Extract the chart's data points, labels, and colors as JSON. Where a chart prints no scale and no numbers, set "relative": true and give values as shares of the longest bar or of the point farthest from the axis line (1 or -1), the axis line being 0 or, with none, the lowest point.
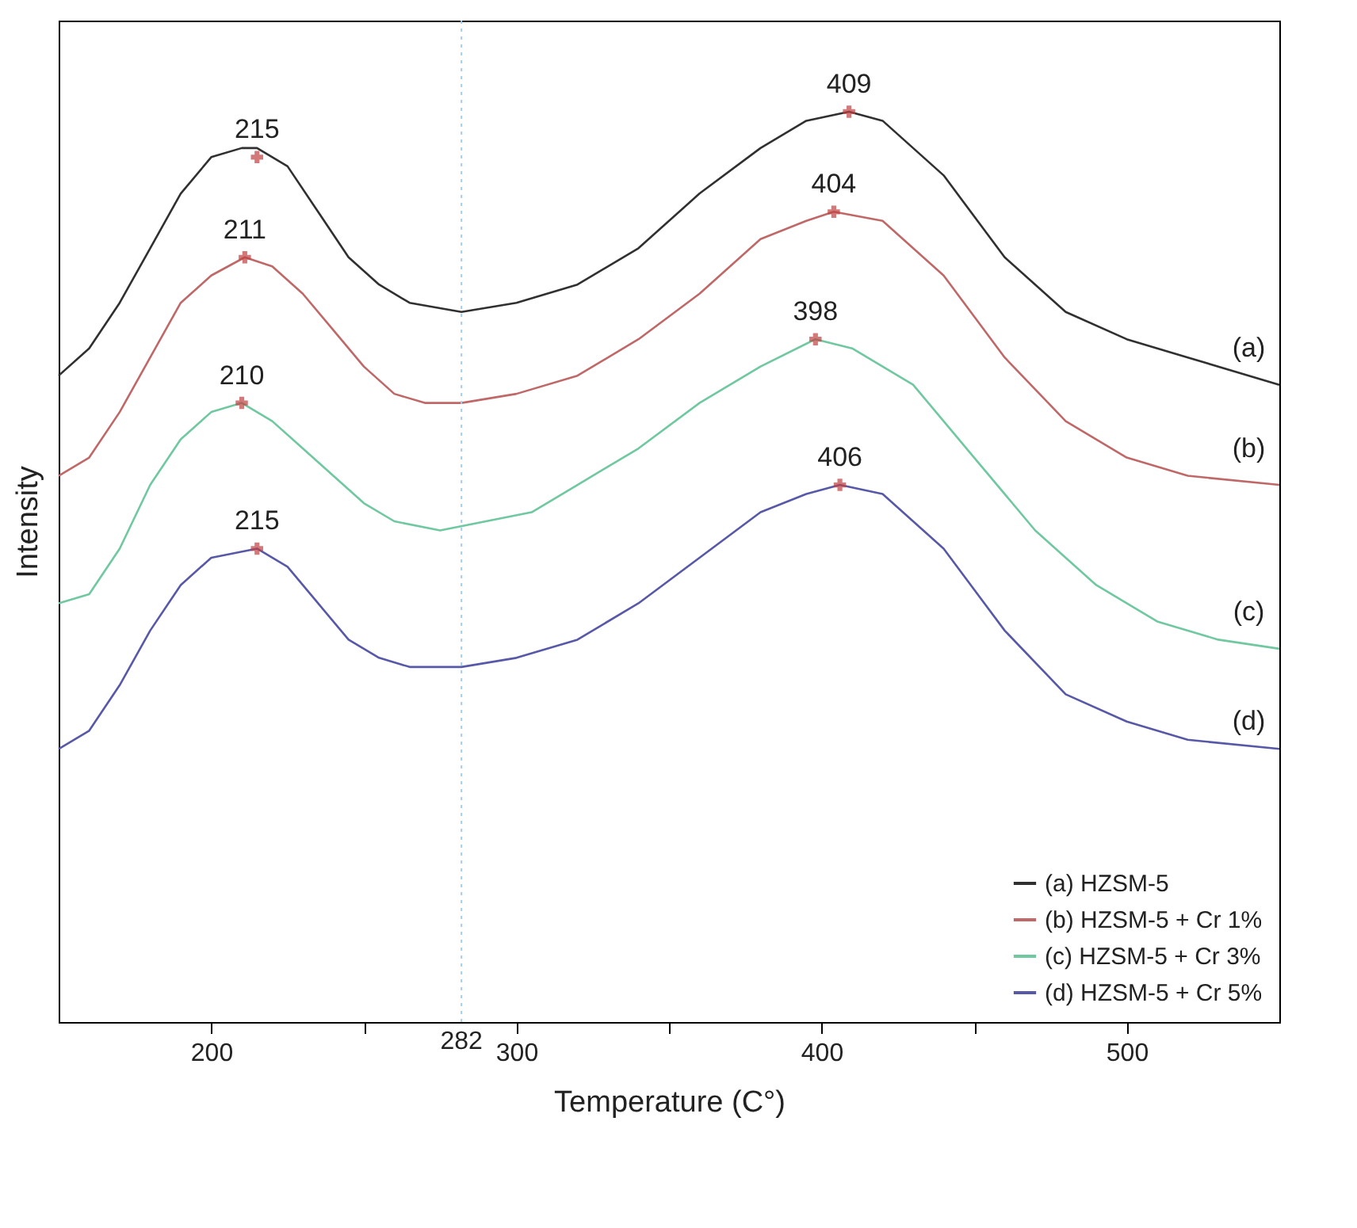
{
  "chart_data": {
    "type": "line",
    "relative": true,
    "xlabel": "Temperature (C°)",
    "ylabel": "Intensity",
    "xlim": [
      150,
      550
    ],
    "xticks": [
      200,
      {
        "value": 250,
        "label": null
      },
      300,
      {
        "value": 350,
        "label": null
      },
      400,
      {
        "value": 450,
        "label": null
      },
      500
    ],
    "legend": "bottom right",
    "grid": false,
    "series": [
      {
        "name": "(a) HZSM-5",
        "color": "#303030",
        "x": [
          150,
          160,
          170,
          180,
          190,
          200,
          210,
          215,
          225,
          235,
          245,
          255,
          265,
          282,
          300,
          320,
          340,
          360,
          380,
          395,
          409,
          420,
          440,
          460,
          480,
          500,
          520,
          550
        ],
        "values": [
          0.71,
          0.74,
          0.79,
          0.85,
          0.91,
          0.95,
          0.96,
          0.96,
          0.94,
          0.89,
          0.84,
          0.81,
          0.79,
          0.78,
          0.79,
          0.81,
          0.85,
          0.91,
          0.96,
          0.99,
          1,
          0.99,
          0.93,
          0.84,
          0.78,
          0.75,
          0.73,
          0.7
        ]
      },
      {
        "name": "(b) HZSM-5 + Cr 1%",
        "color": "#c06868",
        "x": [
          150,
          160,
          170,
          180,
          190,
          200,
          211,
          220,
          230,
          240,
          250,
          260,
          270,
          282,
          300,
          320,
          340,
          360,
          380,
          395,
          404,
          420,
          440,
          460,
          480,
          500,
          520,
          550
        ],
        "values": [
          0.6,
          0.62,
          0.67,
          0.73,
          0.79,
          0.82,
          0.84,
          0.83,
          0.8,
          0.76,
          0.72,
          0.69,
          0.68,
          0.68,
          0.69,
          0.71,
          0.75,
          0.8,
          0.86,
          0.88,
          0.89,
          0.88,
          0.82,
          0.73,
          0.66,
          0.62,
          0.6,
          0.59
        ]
      },
      {
        "name": "(c) HZSM-5 + Cr 3%",
        "color": "#70c8a0",
        "x": [
          150,
          160,
          170,
          180,
          190,
          200,
          210,
          220,
          230,
          240,
          250,
          260,
          275,
          290,
          305,
          320,
          340,
          360,
          380,
          398,
          410,
          430,
          450,
          470,
          490,
          510,
          530,
          550
        ],
        "values": [
          0.46,
          0.47,
          0.52,
          0.59,
          0.64,
          0.67,
          0.68,
          0.66,
          0.63,
          0.6,
          0.57,
          0.55,
          0.54,
          0.55,
          0.56,
          0.59,
          0.63,
          0.68,
          0.72,
          0.75,
          0.74,
          0.7,
          0.62,
          0.54,
          0.48,
          0.44,
          0.42,
          0.41
        ]
      },
      {
        "name": "(d) HZSM-5 + Cr 5%",
        "color": "#5858a8",
        "x": [
          150,
          160,
          170,
          180,
          190,
          200,
          215,
          225,
          235,
          245,
          255,
          265,
          282,
          300,
          320,
          340,
          360,
          380,
          395,
          406,
          420,
          440,
          460,
          480,
          500,
          520,
          550
        ],
        "values": [
          0.3,
          0.32,
          0.37,
          0.43,
          0.48,
          0.51,
          0.52,
          0.5,
          0.46,
          0.42,
          0.4,
          0.39,
          0.39,
          0.4,
          0.42,
          0.46,
          0.51,
          0.56,
          0.58,
          0.59,
          0.58,
          0.52,
          0.43,
          0.36,
          0.33,
          0.31,
          0.3
        ]
      },
      {
        "type": "scatter",
        "marker": "cross",
        "color": "#c04040",
        "x": [
          215,
          409,
          211,
          404,
          210,
          398,
          215,
          406
        ],
        "values": [
          0.95,
          1,
          0.84,
          0.89,
          0.68,
          0.75,
          0.52,
          0.59
        ]
      }
    ],
    "ref_lines": [
      {
        "axis": "x",
        "value": 282,
        "label": "282",
        "color": "#a8cce8",
        "line_style": "dotted"
      }
    ],
    "annotations": [
      {
        "text": "215",
        "x": 215,
        "y": 0.95
      },
      {
        "text": "409",
        "x": 409,
        "y": 1
      },
      {
        "text": "211",
        "x": 211,
        "y": 0.84
      },
      {
        "text": "404",
        "x": 404,
        "y": 0.89
      },
      {
        "text": "210",
        "x": 210,
        "y": 0.68
      },
      {
        "text": "398",
        "x": 398,
        "y": 0.75
      },
      {
        "text": "215",
        "x": 215,
        "y": 0.52
      },
      {
        "text": "406",
        "x": 406,
        "y": 0.59
      },
      {
        "text": "(a)",
        "x": 540,
        "y": 0.71
      },
      {
        "text": "(b)",
        "x": 540,
        "y": 0.6
      },
      {
        "text": "(c)",
        "x": 540,
        "y": 0.42
      },
      {
        "text": "(d)",
        "x": 540,
        "y": 0.3
      }
    ]
  }
}
